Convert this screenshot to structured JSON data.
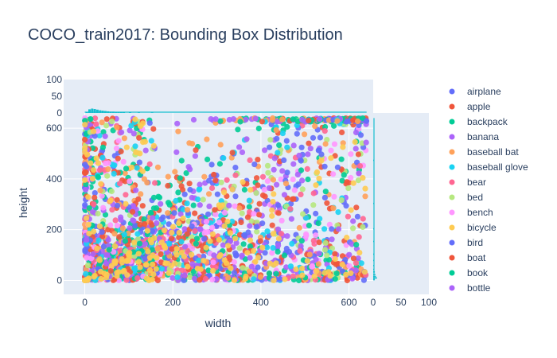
{
  "chart_data": {
    "type": "scatter",
    "title": "COCO_train2017: Bounding Box Distribution",
    "xlabel": "width",
    "ylabel": "height",
    "xlim": [
      -48,
      655
    ],
    "ylim": [
      -55,
      660
    ],
    "x_ticks": [
      0,
      200,
      400,
      600
    ],
    "y_ticks": [
      0,
      200,
      400,
      600
    ],
    "grid": true,
    "legend_position": "right",
    "marginal_top": {
      "type": "histogram",
      "axis_ticks": [
        0,
        50,
        100
      ],
      "range": [
        0,
        100
      ],
      "color": "#17becf",
      "bins": [
        {
          "x": 2,
          "count": 3
        },
        {
          "x": 8,
          "count": 11
        },
        {
          "x": 14,
          "count": 13
        },
        {
          "x": 20,
          "count": 12
        },
        {
          "x": 26,
          "count": 10
        },
        {
          "x": 32,
          "count": 8
        },
        {
          "x": 38,
          "count": 7
        },
        {
          "x": 44,
          "count": 6
        },
        {
          "x": 50,
          "count": 5
        },
        {
          "x": 56,
          "count": 4
        },
        {
          "x": 62,
          "count": 4
        },
        {
          "x": 68,
          "count": 3
        },
        {
          "x": 74,
          "count": 3
        },
        {
          "x": 80,
          "count": 3
        },
        {
          "x": 86,
          "count": 2
        },
        {
          "x": 100,
          "count": 2
        },
        {
          "x": 120,
          "count": 1
        },
        {
          "x": 150,
          "count": 1
        }
      ]
    },
    "marginal_right": {
      "type": "histogram",
      "axis_ticks": [
        0,
        50,
        100
      ],
      "range": [
        0,
        100
      ],
      "color": "#17becf",
      "bins": [
        {
          "y": 0,
          "count": 3
        },
        {
          "y": 6,
          "count": 7
        },
        {
          "y": 12,
          "count": 5
        },
        {
          "y": 20,
          "count": 4
        },
        {
          "y": 30,
          "count": 3
        },
        {
          "y": 40,
          "count": 2
        },
        {
          "y": 55,
          "count": 2
        },
        {
          "y": 75,
          "count": 1
        },
        {
          "y": 100,
          "count": 1
        },
        {
          "y": 150,
          "count": 1
        },
        {
          "y": 200,
          "count": 1
        },
        {
          "y": 300,
          "count": 1
        },
        {
          "y": 470,
          "count": 1
        }
      ]
    },
    "series": [
      {
        "name": "airplane",
        "color": "#636efa",
        "x_max": 640,
        "y_max": 640,
        "slope": 1.0
      },
      {
        "name": "apple",
        "color": "#ef553b",
        "x_max": 640,
        "y_max": 640,
        "slope": 1.3
      },
      {
        "name": "backpack",
        "color": "#00cc96",
        "x_max": 640,
        "y_max": 640,
        "slope": 1.4
      },
      {
        "name": "banana",
        "color": "#ab63fa",
        "x_max": 640,
        "y_max": 640,
        "slope": 0.9
      },
      {
        "name": "baseball bat",
        "color": "#ffa15a",
        "x_max": 640,
        "y_max": 640,
        "slope": 1.8
      },
      {
        "name": "baseball glove",
        "color": "#19d3f3",
        "x_max": 640,
        "y_max": 640,
        "slope": 1.0
      },
      {
        "name": "bear",
        "color": "#ff6692",
        "x_max": 640,
        "y_max": 640,
        "slope": 0.8
      },
      {
        "name": "bed",
        "color": "#b6e880",
        "x_max": 640,
        "y_max": 640,
        "slope": 0.85
      },
      {
        "name": "bench",
        "color": "#ff97ff",
        "x_max": 640,
        "y_max": 640,
        "slope": 0.6
      },
      {
        "name": "bicycle",
        "color": "#fecb52",
        "x_max": 640,
        "y_max": 640,
        "slope": 0.7
      },
      {
        "name": "bird",
        "color": "#636efa",
        "x_max": 640,
        "y_max": 640,
        "slope": 0.95
      },
      {
        "name": "boat",
        "color": "#ef553b",
        "x_max": 640,
        "y_max": 640,
        "slope": 0.7
      },
      {
        "name": "book",
        "color": "#00cc96",
        "x_max": 640,
        "y_max": 640,
        "slope": 1.5
      },
      {
        "name": "bottle",
        "color": "#ab63fa",
        "x_max": 640,
        "y_max": 640,
        "slope": 2.0
      }
    ],
    "notes_visible": []
  }
}
